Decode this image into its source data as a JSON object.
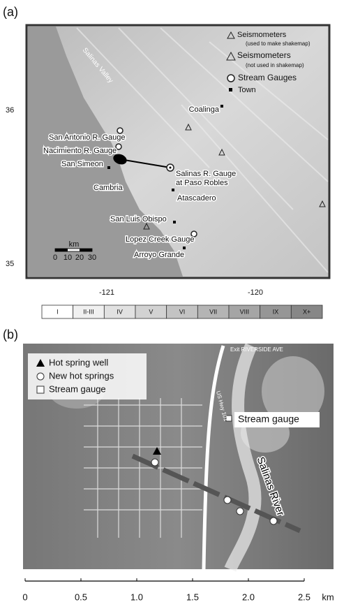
{
  "panel_a": {
    "label": "(a)",
    "legend": [
      {
        "label": "Seismometers",
        "note": "(used to make shakemap)"
      },
      {
        "label": "Seismometers",
        "note": "(not used in shakemap)"
      },
      {
        "label": "Stream Gauges"
      },
      {
        "label": "Town"
      }
    ],
    "places": [
      "Coalinga",
      "San Antonio R. Gauge",
      "Nacimiento R. Gauge",
      "San Simeon",
      "Salinas R. Gauge",
      "at Paso Robles",
      "Cambria",
      "Atascadero",
      "San Luis Obispo",
      "Lopez Creek Gauge",
      "Arroyo Grande"
    ],
    "map_labels": [
      "Salinas Valley"
    ],
    "lat_ticks": [
      "36",
      "35"
    ],
    "lon_ticks": [
      "-121",
      "-120"
    ],
    "scale": {
      "unit": "km",
      "ticks": [
        "0",
        "10",
        "20",
        "30"
      ]
    },
    "intensity": [
      "I",
      "II-III",
      "IV",
      "V",
      "VI",
      "VII",
      "VIII",
      "IX",
      "X+"
    ]
  },
  "panel_b": {
    "label": "(b)",
    "legend": [
      "Hot spring well",
      "New hot springs",
      "Stream gauge"
    ],
    "labels": [
      "Stream gauge",
      "Salinas River",
      "US Hwy 101",
      "Exit RIVERSIDE AVE"
    ],
    "scale": {
      "ticks": [
        "0",
        "0.5",
        "1.0",
        "1.5",
        "2.0",
        "2.5"
      ],
      "unit": "km"
    }
  }
}
